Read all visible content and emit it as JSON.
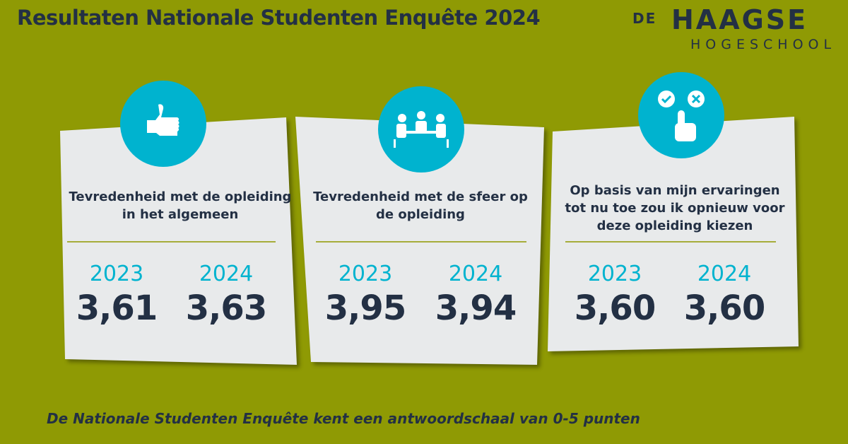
{
  "title": "Resultaten Nationale Studenten Enquête 2024",
  "logo": {
    "de": "DE",
    "name": "HAAGSE",
    "sub": "HOGESCHOOL"
  },
  "colors": {
    "background": "#8f9a04",
    "card": "#e8eaeb",
    "accent": "#00b3cf",
    "text": "#233044"
  },
  "cards": [
    {
      "icon": "thumbs-up-icon",
      "question": "Tevredenheid met de opleiding in het algemeen",
      "years": [
        {
          "year": "2023",
          "value": "3,61"
        },
        {
          "year": "2024",
          "value": "3,63"
        }
      ]
    },
    {
      "icon": "meeting-table-icon",
      "question": "Tevredenheid met de sfeer op de opleiding",
      "years": [
        {
          "year": "2023",
          "value": "3,95"
        },
        {
          "year": "2024",
          "value": "3,94"
        }
      ]
    },
    {
      "icon": "choice-hand-icon",
      "question": "Op basis van mijn ervaringen tot nu toe zou ik opnieuw voor deze opleiding kiezen",
      "years": [
        {
          "year": "2023",
          "value": "3,60"
        },
        {
          "year": "2024",
          "value": "3,60"
        }
      ]
    }
  ],
  "footnote": "De Nationale Studenten Enquête kent een antwoordschaal van 0-5 punten"
}
